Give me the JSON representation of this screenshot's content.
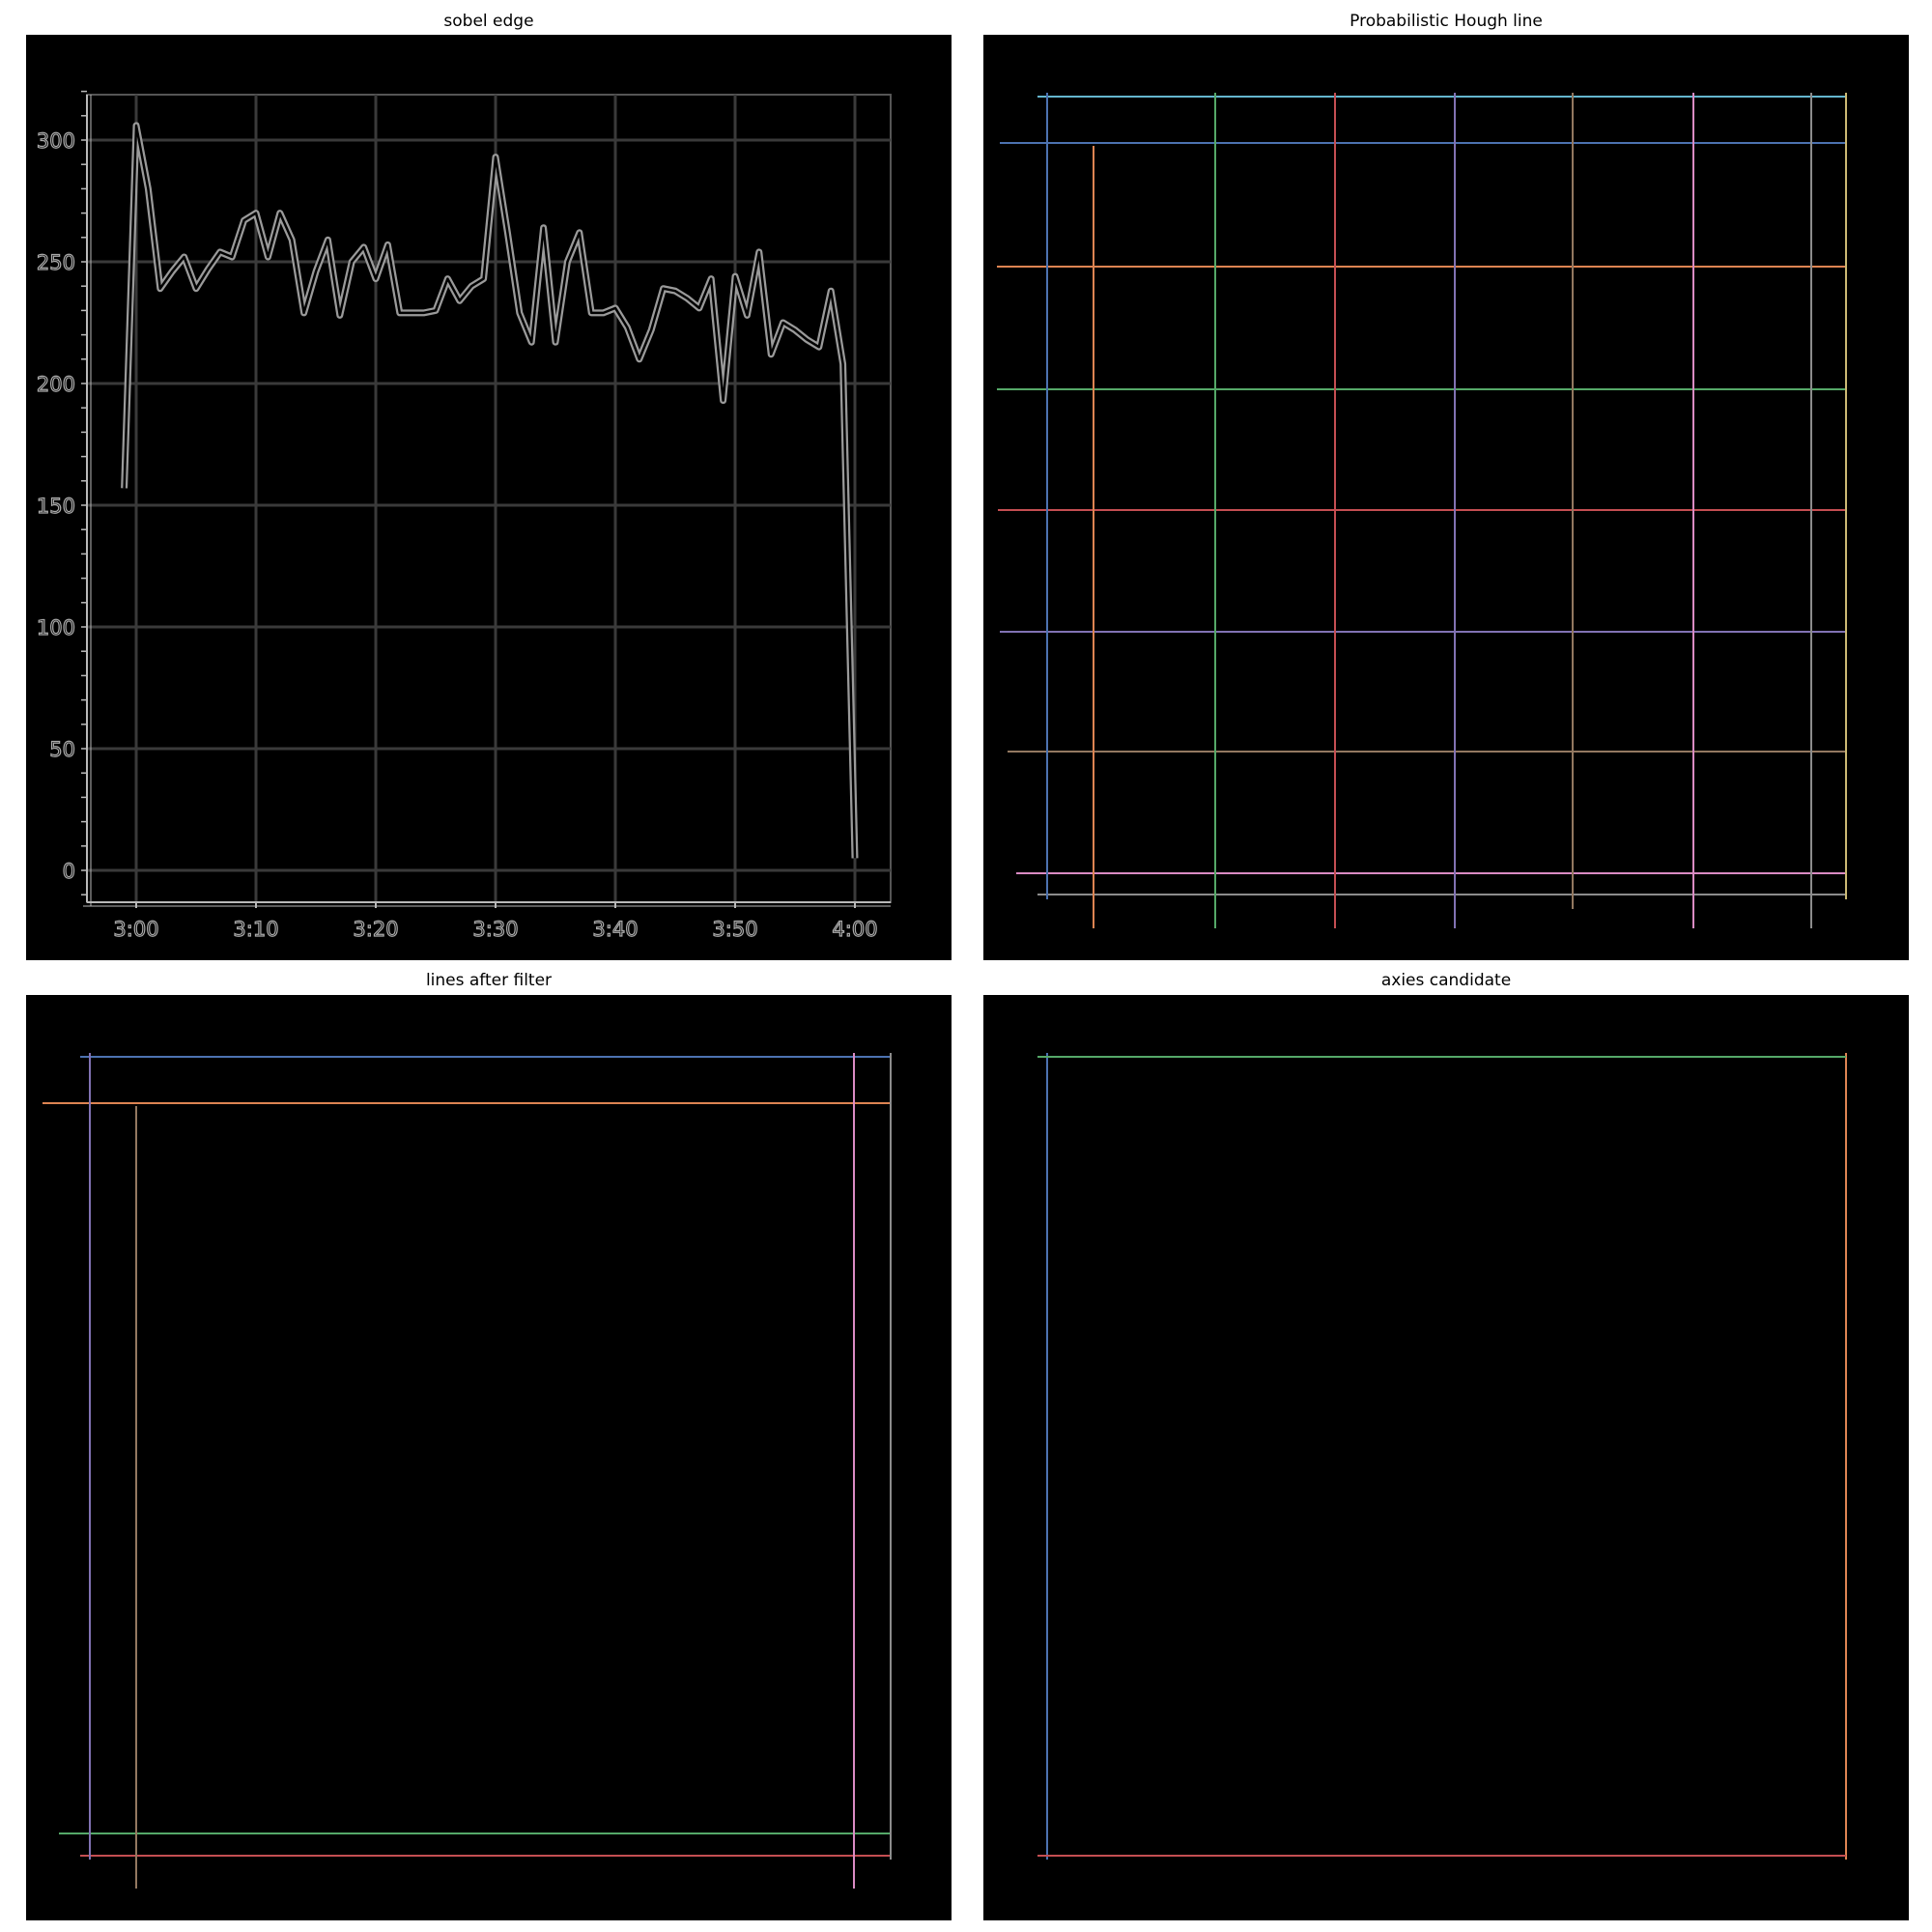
{
  "panels": [
    {
      "title": "sobel edge"
    },
    {
      "title": "Probabilistic Hough line"
    },
    {
      "title": "lines after filter"
    },
    {
      "title": "axies candidate"
    }
  ],
  "colors": {
    "blue": "#4c72b0",
    "orange": "#dd8452",
    "green": "#55a868",
    "red": "#c44e52",
    "purple": "#8172b3",
    "brown": "#937860",
    "pink": "#da8bc3",
    "gray": "#8c8c8c",
    "olive": "#ccb974",
    "cyan": "#64b5cd",
    "edge": "#b9b9b9"
  },
  "chart_data": [
    {
      "type": "line",
      "title": "sobel edge",
      "x_tick_labels": [
        "3:00",
        "3:10",
        "3:20",
        "3:30",
        "3:40",
        "3:50",
        "4:00"
      ],
      "y_tick_labels": [
        "0",
        "50",
        "100",
        "150",
        "200",
        "250",
        "300"
      ],
      "ylim": [
        -10,
        320
      ],
      "grid": true,
      "series": [
        {
          "x_minutes": [
            -1,
            0,
            1,
            2,
            3,
            4,
            5,
            6,
            7,
            8,
            9,
            10,
            11,
            12,
            13,
            14,
            15,
            16,
            17,
            18,
            19,
            20,
            21,
            22,
            23,
            24,
            25,
            26,
            27,
            28,
            29,
            30,
            31,
            32,
            33,
            34,
            35,
            36,
            37,
            38,
            39,
            40,
            41,
            42,
            43,
            44,
            45,
            46,
            47,
            48,
            49,
            50,
            51,
            52,
            53,
            54,
            55,
            56,
            57,
            58,
            59,
            60
          ],
          "values": [
            157,
            306,
            280,
            239,
            246,
            252,
            239,
            247,
            254,
            252,
            267,
            270,
            252,
            270,
            259,
            229,
            246,
            259,
            228,
            250,
            256,
            243,
            257,
            229,
            229,
            229,
            230,
            243,
            234,
            240,
            243,
            293,
            262,
            229,
            217,
            264,
            217,
            250,
            262,
            229,
            229,
            231,
            223,
            210,
            222,
            239,
            238,
            235,
            231,
            243,
            193,
            244,
            228,
            254,
            212,
            225,
            222,
            218,
            215,
            238,
            208,
            5
          ]
        }
      ]
    },
    {
      "type": "line",
      "title": "Probabilistic Hough line",
      "series": [
        {
          "color": "cyan",
          "segments": 2
        },
        {
          "color": "blue",
          "segments": 2
        },
        {
          "color": "orange",
          "segments": 2
        },
        {
          "color": "green",
          "segments": 2
        },
        {
          "color": "red",
          "segments": 2
        },
        {
          "color": "purple",
          "segments": 2
        },
        {
          "color": "brown",
          "segments": 2
        },
        {
          "color": "pink",
          "segments": 2
        },
        {
          "color": "gray",
          "segments": 2
        },
        {
          "color": "olive",
          "segments": 1
        }
      ]
    },
    {
      "type": "line",
      "title": "lines after filter",
      "series": [
        {
          "color": "blue"
        },
        {
          "color": "orange"
        },
        {
          "color": "green"
        },
        {
          "color": "red"
        },
        {
          "color": "purple"
        },
        {
          "color": "brown"
        },
        {
          "color": "pink"
        },
        {
          "color": "gray"
        }
      ]
    },
    {
      "type": "line",
      "title": "axies candidate",
      "series": [
        {
          "color": "blue"
        },
        {
          "color": "orange"
        },
        {
          "color": "green"
        },
        {
          "color": "red"
        }
      ]
    }
  ]
}
